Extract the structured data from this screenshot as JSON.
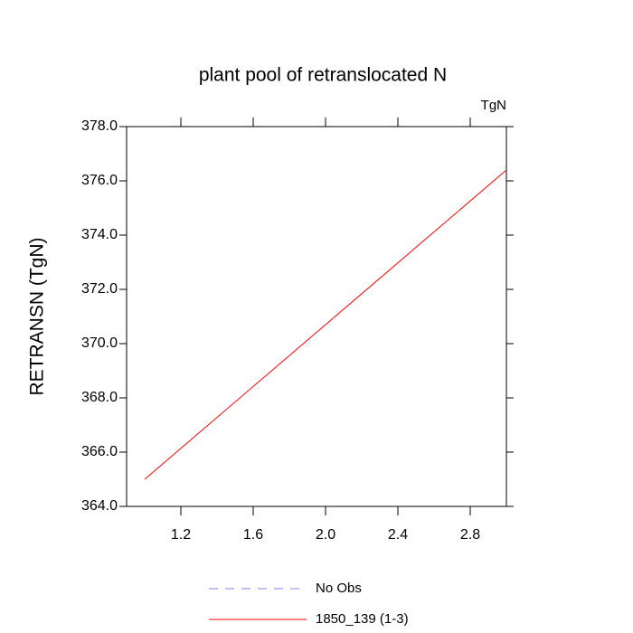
{
  "chart_data": {
    "type": "line",
    "title": "plant pool of retranslocated N",
    "units_label": "TgN",
    "y_label": "RETRANSN  (TgN)",
    "x": [
      1.0,
      2.0,
      3.0
    ],
    "series": [
      {
        "name": "No Obs",
        "color": "#8080ff",
        "dash": true,
        "values": [
          null,
          null,
          null
        ]
      },
      {
        "name": "1850_139 (1-3)",
        "color": "#ff0000",
        "dash": false,
        "values": [
          365.0,
          370.7,
          376.4
        ]
      }
    ],
    "xlim": [
      0.9,
      3.0
    ],
    "xticks": [
      1.2,
      1.6,
      {
        "value": 2.0,
        "label": "2.0"
      },
      2.4,
      2.8
    ],
    "ylim": [
      364.0,
      378.0
    ],
    "yticks": [
      {
        "value": 364.0,
        "label": "364.0"
      },
      {
        "value": 366.0,
        "label": "366.0"
      },
      {
        "value": 368.0,
        "label": "368.0"
      },
      {
        "value": 370.0,
        "label": "370.0"
      },
      {
        "value": 372.0,
        "label": "372.0"
      },
      {
        "value": 374.0,
        "label": "374.0"
      },
      {
        "value": 376.0,
        "label": "376.0"
      },
      {
        "value": 378.0,
        "label": "378.0"
      }
    ]
  }
}
